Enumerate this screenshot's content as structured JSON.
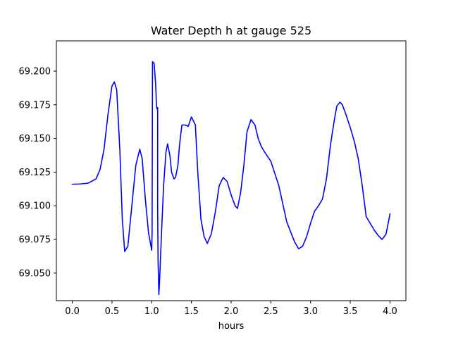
{
  "chart_data": {
    "type": "line",
    "title": "Water Depth h at gauge 525",
    "xlabel": "hours",
    "ylabel": "",
    "xlim": [
      -0.2,
      4.2
    ],
    "ylim": [
      69.0295,
      69.2225
    ],
    "grid": false,
    "x_ticks": [
      0.0,
      0.5,
      1.0,
      1.5,
      2.0,
      2.5,
      3.0,
      3.5,
      4.0
    ],
    "x_tick_labels": [
      "0.0",
      "0.5",
      "1.0",
      "1.5",
      "2.0",
      "2.5",
      "3.0",
      "3.5",
      "4.0"
    ],
    "y_ticks": [
      69.05,
      69.075,
      69.1,
      69.125,
      69.15,
      69.175,
      69.2
    ],
    "y_tick_labels": [
      "69.050",
      "69.075",
      "69.100",
      "69.125",
      "69.150",
      "69.175",
      "69.200"
    ],
    "series": [
      {
        "color": "#0000ff",
        "x": [
          0.0,
          0.1,
          0.2,
          0.3,
          0.35,
          0.4,
          0.45,
          0.5,
          0.53,
          0.56,
          0.6,
          0.63,
          0.66,
          0.7,
          0.75,
          0.8,
          0.85,
          0.88,
          0.92,
          0.96,
          1.0,
          1.005,
          1.01,
          1.03,
          1.05,
          1.06,
          1.065,
          1.075,
          1.075,
          1.08,
          1.09,
          1.1,
          1.12,
          1.15,
          1.18,
          1.2,
          1.23,
          1.25,
          1.28,
          1.3,
          1.33,
          1.35,
          1.38,
          1.42,
          1.46,
          1.5,
          1.55,
          1.58,
          1.62,
          1.66,
          1.7,
          1.75,
          1.8,
          1.85,
          1.9,
          1.95,
          2.0,
          2.05,
          2.08,
          2.12,
          2.16,
          2.2,
          2.25,
          2.3,
          2.34,
          2.38,
          2.42,
          2.5,
          2.6,
          2.7,
          2.8,
          2.85,
          2.9,
          2.95,
          3.0,
          3.05,
          3.1,
          3.15,
          3.2,
          3.25,
          3.3,
          3.33,
          3.37,
          3.4,
          3.45,
          3.5,
          3.55,
          3.6,
          3.65,
          3.7,
          3.8,
          3.85,
          3.9,
          3.95,
          4.0
        ],
        "y": [
          69.116,
          69.1162,
          69.1168,
          69.12,
          69.127,
          69.142,
          69.168,
          69.189,
          69.192,
          69.186,
          69.14,
          69.09,
          69.066,
          69.07,
          69.1,
          69.13,
          69.142,
          69.135,
          69.105,
          69.08,
          69.067,
          69.08,
          69.207,
          69.206,
          69.19,
          69.175,
          69.172,
          69.173,
          69.1,
          69.06,
          69.034,
          69.045,
          69.075,
          69.115,
          69.14,
          69.146,
          69.137,
          69.125,
          69.12,
          69.121,
          69.13,
          69.145,
          69.16,
          69.16,
          69.159,
          69.166,
          69.16,
          69.125,
          69.09,
          69.077,
          69.072,
          69.079,
          69.095,
          69.115,
          69.121,
          69.118,
          69.108,
          69.1,
          69.098,
          69.11,
          69.13,
          69.155,
          69.164,
          69.16,
          69.15,
          69.144,
          69.14,
          69.133,
          69.115,
          69.088,
          69.073,
          69.068,
          69.07,
          69.077,
          69.087,
          69.096,
          69.1,
          69.105,
          69.12,
          69.145,
          69.164,
          69.174,
          69.177,
          69.175,
          69.167,
          69.158,
          69.148,
          69.135,
          69.115,
          69.092,
          69.082,
          69.078,
          69.075,
          69.079,
          69.094
        ]
      }
    ]
  }
}
